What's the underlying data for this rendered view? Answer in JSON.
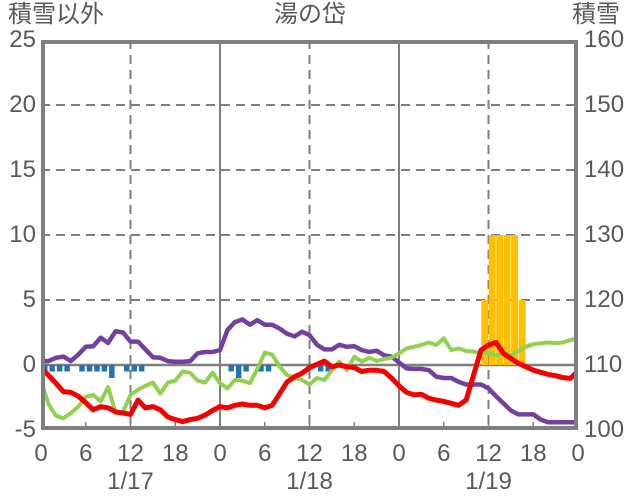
{
  "chart_data": {
    "type": "line",
    "title": "湯の岱",
    "left_axis": {
      "title": "積雪以外",
      "min": -5,
      "max": 25,
      "ticks": [
        "25",
        "20",
        "15",
        "10",
        "5",
        "0",
        "-5"
      ]
    },
    "right_axis": {
      "title": "積雪",
      "min": 100,
      "max": 160,
      "ticks": [
        "160",
        "150",
        "140",
        "130",
        "120",
        "110",
        "100"
      ]
    },
    "x_axis": {
      "hours_total": 72,
      "tick_interval": 6,
      "tick_labels": [
        "0",
        "6",
        "12",
        "18",
        "0",
        "6",
        "12",
        "18",
        "0",
        "6",
        "12",
        "18",
        "0"
      ],
      "day_labels": [
        "1/17",
        "1/18",
        "1/19"
      ]
    },
    "colors": {
      "grid": "#7F7F7F",
      "text": "#595959",
      "purple": "#7440A0",
      "red": "#F40000",
      "green": "#92D050",
      "blue": "#1F74B8",
      "orange": "#FFC000"
    },
    "gridlines": {
      "h_dashed_values": [
        20,
        15,
        10,
        5
      ],
      "v_solid_hours": [
        24,
        48
      ],
      "v_dashed_hours": [
        12,
        36,
        60
      ],
      "zero_value": 0
    },
    "series": [
      {
        "name": "purple-line",
        "color": "#7440A0",
        "width": 4.5,
        "values": [
          0.3,
          0.3,
          0.55,
          0.65,
          0.3,
          0.8,
          1.4,
          1.45,
          2.1,
          1.7,
          2.6,
          2.5,
          1.8,
          1.8,
          1.2,
          0.6,
          0.55,
          0.3,
          0.25,
          0.25,
          0.3,
          0.9,
          1.0,
          1.0,
          1.15,
          2.7,
          3.3,
          3.5,
          3.1,
          3.45,
          3.1,
          3.1,
          2.8,
          2.4,
          2.2,
          2.55,
          2.3,
          1.55,
          1.2,
          1.2,
          1.55,
          1.4,
          1.45,
          1.15,
          1.0,
          1.1,
          0.75,
          0.65,
          0.2,
          -0.26,
          -0.3,
          -0.3,
          -0.4,
          -0.9,
          -1.0,
          -1.0,
          -1.3,
          -1.5,
          -1.5,
          -1.5,
          -1.8,
          -2.4,
          -2.95,
          -3.5,
          -3.8,
          -3.8,
          -3.8,
          -4.2,
          -4.4,
          -4.4,
          -4.4,
          -4.4,
          -4.4
        ]
      },
      {
        "name": "green-line",
        "color": "#92D050",
        "width": 4,
        "values": [
          -1.2,
          -3.0,
          -3.9,
          -4.1,
          -3.7,
          -3.2,
          -2.45,
          -2.3,
          -2.8,
          -1.7,
          -3.7,
          -3.6,
          -2.3,
          -1.9,
          -1.6,
          -1.35,
          -2.2,
          -1.35,
          -1.2,
          -0.5,
          -0.6,
          -1.2,
          -1.35,
          -0.6,
          -1.4,
          -1.8,
          -1.15,
          -1.2,
          -1.4,
          -0.3,
          0.95,
          0.8,
          -0.13,
          -0.77,
          -1.0,
          -1.15,
          -1.5,
          -1.0,
          -1.15,
          -0.4,
          0.26,
          -0.4,
          0.64,
          0.26,
          0.56,
          0.3,
          0.46,
          0.56,
          0.9,
          1.28,
          1.4,
          1.54,
          1.74,
          1.54,
          2.05,
          1.15,
          1.28,
          1.08,
          1.03,
          0.9,
          0.97,
          0.72,
          0.9,
          0.72,
          1.08,
          1.4,
          1.6,
          1.67,
          1.74,
          1.67,
          1.74,
          1.92,
          2.05
        ]
      },
      {
        "name": "red-line",
        "color": "#F40000",
        "width": 5,
        "values": [
          -0.2,
          -0.8,
          -1.4,
          -2.05,
          -2.1,
          -2.4,
          -2.9,
          -3.45,
          -3.2,
          -3.3,
          -3.6,
          -3.7,
          -3.8,
          -2.7,
          -3.3,
          -3.2,
          -3.45,
          -4.0,
          -4.2,
          -4.35,
          -4.2,
          -4.1,
          -3.85,
          -3.5,
          -3.2,
          -3.3,
          -3.1,
          -3.0,
          -3.1,
          -3.1,
          -3.3,
          -3.1,
          -2.2,
          -1.3,
          -0.9,
          -0.64,
          -0.2,
          0.05,
          0.3,
          -0.13,
          0.0,
          -0.13,
          -0.2,
          -0.5,
          -0.4,
          -0.4,
          -0.5,
          -1.0,
          -1.6,
          -2.1,
          -2.3,
          -2.25,
          -2.55,
          -2.7,
          -2.8,
          -2.95,
          -3.1,
          -2.7,
          -0.77,
          1.15,
          1.54,
          1.74,
          0.9,
          0.5,
          0.13,
          -0.13,
          -0.4,
          -0.56,
          -0.72,
          -0.82,
          -0.97,
          -1.03,
          -0.46
        ]
      }
    ],
    "bars": [
      {
        "name": "orange-bars",
        "color": "#FFC000",
        "values": [
          {
            "hour": 59,
            "value": 5
          },
          {
            "hour": 60,
            "value": 10
          },
          {
            "hour": 61,
            "value": 10
          },
          {
            "hour": 62,
            "value": 10
          },
          {
            "hour": 63,
            "value": 10
          },
          {
            "hour": 64,
            "value": 5
          }
        ]
      },
      {
        "name": "blue-bars",
        "color": "#1F74B8",
        "values": [
          {
            "hour": 0,
            "value": -0.5
          },
          {
            "hour": 1,
            "value": -0.5
          },
          {
            "hour": 2,
            "value": -0.5
          },
          {
            "hour": 3,
            "value": -0.5
          },
          {
            "hour": 5,
            "value": -0.5
          },
          {
            "hour": 6,
            "value": -0.5
          },
          {
            "hour": 7,
            "value": -0.5
          },
          {
            "hour": 8,
            "value": -0.5
          },
          {
            "hour": 9,
            "value": -1
          },
          {
            "hour": 11,
            "value": -0.5
          },
          {
            "hour": 12,
            "value": -0.5
          },
          {
            "hour": 13,
            "value": -0.5
          },
          {
            "hour": 25,
            "value": -0.5
          },
          {
            "hour": 26,
            "value": -1
          },
          {
            "hour": 27,
            "value": -0.5
          },
          {
            "hour": 29,
            "value": -0.5
          },
          {
            "hour": 30,
            "value": -0.5
          },
          {
            "hour": 37,
            "value": -0.5
          },
          {
            "hour": 38,
            "value": -0.5
          }
        ]
      }
    ]
  }
}
